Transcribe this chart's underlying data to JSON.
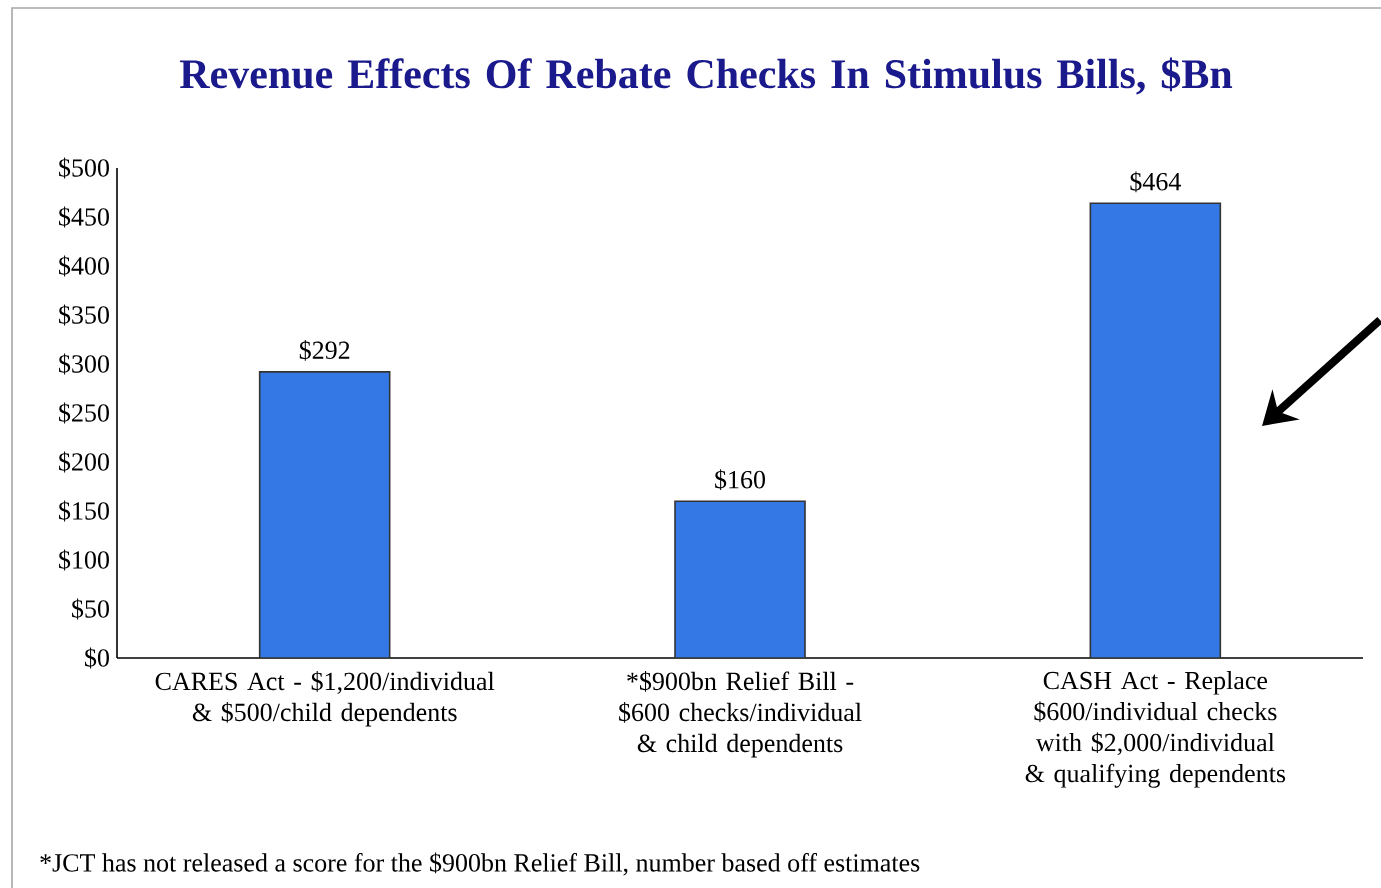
{
  "chart_data": {
    "type": "bar",
    "title": "Revenue Effects Of Rebate Checks In Stimulus Bills, $Bn",
    "categories": [
      "CARES Act - $1,200/individual & $500/child dependents",
      "*$900bn Relief Bill - $600 checks/individual & child dependents",
      "CASH Act - Replace $600/individual checks with $2,000/individual & qualifying dependents"
    ],
    "values": [
      292,
      160,
      464
    ],
    "value_labels": [
      "$292",
      "$160",
      "$464"
    ],
    "color": "#3478e6",
    "ylim": [
      0,
      500
    ],
    "yticks": [
      {
        "value": 0,
        "label": "$0"
      },
      {
        "value": 50,
        "label": "$50"
      },
      {
        "value": 100,
        "label": "$100"
      },
      {
        "value": 150,
        "label": "$150"
      },
      {
        "value": 200,
        "label": "$200"
      },
      {
        "value": 250,
        "label": "$250"
      },
      {
        "value": 300,
        "label": "$300"
      },
      {
        "value": 350,
        "label": "$350"
      },
      {
        "value": 400,
        "label": "$400"
      },
      {
        "value": 450,
        "label": "$450"
      },
      {
        "value": 500,
        "label": "$500"
      }
    ],
    "annotations": [
      "*JCT has not released a score for the $900bn Relief Bill, number based off estimates"
    ]
  }
}
